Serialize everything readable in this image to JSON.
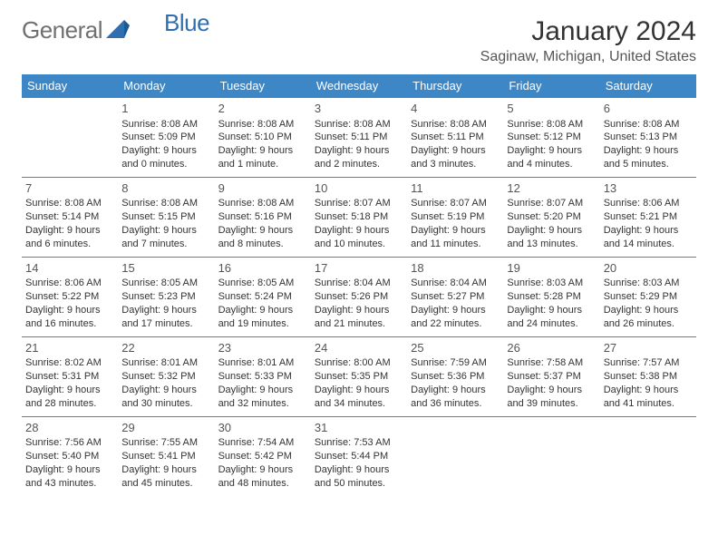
{
  "logo": {
    "general": "General",
    "blue": "Blue"
  },
  "title": "January 2024",
  "location": "Saginaw, Michigan, United States",
  "colors": {
    "header_bg": "#3d87c7",
    "header_text": "#ffffff",
    "border": "#3d87c7",
    "body_text": "#333333",
    "daynum_text": "#555555",
    "logo_general": "#707070",
    "logo_blue": "#2f6fb0",
    "background": "#ffffff"
  },
  "weekdays": [
    "Sunday",
    "Monday",
    "Tuesday",
    "Wednesday",
    "Thursday",
    "Friday",
    "Saturday"
  ],
  "first_day_offset": 1,
  "days": [
    {
      "n": 1,
      "sunrise": "8:08 AM",
      "sunset": "5:09 PM",
      "daylight": "9 hours and 0 minutes."
    },
    {
      "n": 2,
      "sunrise": "8:08 AM",
      "sunset": "5:10 PM",
      "daylight": "9 hours and 1 minute."
    },
    {
      "n": 3,
      "sunrise": "8:08 AM",
      "sunset": "5:11 PM",
      "daylight": "9 hours and 2 minutes."
    },
    {
      "n": 4,
      "sunrise": "8:08 AM",
      "sunset": "5:11 PM",
      "daylight": "9 hours and 3 minutes."
    },
    {
      "n": 5,
      "sunrise": "8:08 AM",
      "sunset": "5:12 PM",
      "daylight": "9 hours and 4 minutes."
    },
    {
      "n": 6,
      "sunrise": "8:08 AM",
      "sunset": "5:13 PM",
      "daylight": "9 hours and 5 minutes."
    },
    {
      "n": 7,
      "sunrise": "8:08 AM",
      "sunset": "5:14 PM",
      "daylight": "9 hours and 6 minutes."
    },
    {
      "n": 8,
      "sunrise": "8:08 AM",
      "sunset": "5:15 PM",
      "daylight": "9 hours and 7 minutes."
    },
    {
      "n": 9,
      "sunrise": "8:08 AM",
      "sunset": "5:16 PM",
      "daylight": "9 hours and 8 minutes."
    },
    {
      "n": 10,
      "sunrise": "8:07 AM",
      "sunset": "5:18 PM",
      "daylight": "9 hours and 10 minutes."
    },
    {
      "n": 11,
      "sunrise": "8:07 AM",
      "sunset": "5:19 PM",
      "daylight": "9 hours and 11 minutes."
    },
    {
      "n": 12,
      "sunrise": "8:07 AM",
      "sunset": "5:20 PM",
      "daylight": "9 hours and 13 minutes."
    },
    {
      "n": 13,
      "sunrise": "8:06 AM",
      "sunset": "5:21 PM",
      "daylight": "9 hours and 14 minutes."
    },
    {
      "n": 14,
      "sunrise": "8:06 AM",
      "sunset": "5:22 PM",
      "daylight": "9 hours and 16 minutes."
    },
    {
      "n": 15,
      "sunrise": "8:05 AM",
      "sunset": "5:23 PM",
      "daylight": "9 hours and 17 minutes."
    },
    {
      "n": 16,
      "sunrise": "8:05 AM",
      "sunset": "5:24 PM",
      "daylight": "9 hours and 19 minutes."
    },
    {
      "n": 17,
      "sunrise": "8:04 AM",
      "sunset": "5:26 PM",
      "daylight": "9 hours and 21 minutes."
    },
    {
      "n": 18,
      "sunrise": "8:04 AM",
      "sunset": "5:27 PM",
      "daylight": "9 hours and 22 minutes."
    },
    {
      "n": 19,
      "sunrise": "8:03 AM",
      "sunset": "5:28 PM",
      "daylight": "9 hours and 24 minutes."
    },
    {
      "n": 20,
      "sunrise": "8:03 AM",
      "sunset": "5:29 PM",
      "daylight": "9 hours and 26 minutes."
    },
    {
      "n": 21,
      "sunrise": "8:02 AM",
      "sunset": "5:31 PM",
      "daylight": "9 hours and 28 minutes."
    },
    {
      "n": 22,
      "sunrise": "8:01 AM",
      "sunset": "5:32 PM",
      "daylight": "9 hours and 30 minutes."
    },
    {
      "n": 23,
      "sunrise": "8:01 AM",
      "sunset": "5:33 PM",
      "daylight": "9 hours and 32 minutes."
    },
    {
      "n": 24,
      "sunrise": "8:00 AM",
      "sunset": "5:35 PM",
      "daylight": "9 hours and 34 minutes."
    },
    {
      "n": 25,
      "sunrise": "7:59 AM",
      "sunset": "5:36 PM",
      "daylight": "9 hours and 36 minutes."
    },
    {
      "n": 26,
      "sunrise": "7:58 AM",
      "sunset": "5:37 PM",
      "daylight": "9 hours and 39 minutes."
    },
    {
      "n": 27,
      "sunrise": "7:57 AM",
      "sunset": "5:38 PM",
      "daylight": "9 hours and 41 minutes."
    },
    {
      "n": 28,
      "sunrise": "7:56 AM",
      "sunset": "5:40 PM",
      "daylight": "9 hours and 43 minutes."
    },
    {
      "n": 29,
      "sunrise": "7:55 AM",
      "sunset": "5:41 PM",
      "daylight": "9 hours and 45 minutes."
    },
    {
      "n": 30,
      "sunrise": "7:54 AM",
      "sunset": "5:42 PM",
      "daylight": "9 hours and 48 minutes."
    },
    {
      "n": 31,
      "sunrise": "7:53 AM",
      "sunset": "5:44 PM",
      "daylight": "9 hours and 50 minutes."
    }
  ]
}
